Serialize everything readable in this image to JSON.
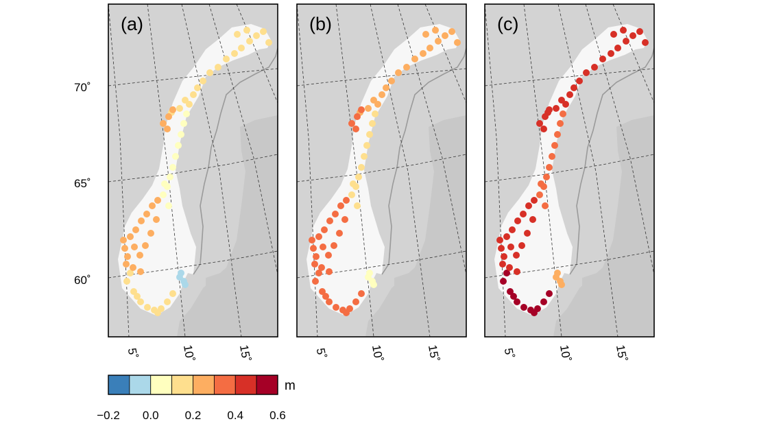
{
  "panels": [
    {
      "id": "a",
      "label": "(a)"
    },
    {
      "id": "b",
      "label": "(b)"
    },
    {
      "id": "c",
      "label": "(c)"
    }
  ],
  "lat_ticks": [
    {
      "value": 70,
      "label": "70˚"
    },
    {
      "value": 65,
      "label": "65˚"
    },
    {
      "value": 60,
      "label": "60˚"
    }
  ],
  "lon_ticks": [
    {
      "value": 5,
      "label": "5˚"
    },
    {
      "value": 10,
      "label": "10˚"
    },
    {
      "value": 15,
      "label": "15˚"
    }
  ],
  "colorbar": {
    "unit": "m",
    "tick_labels": [
      "−0.2",
      "0.0",
      "0.2",
      "0.4",
      "0.6"
    ],
    "range": [
      -0.2,
      0.6
    ],
    "bins": [
      {
        "from": -0.2,
        "to": -0.1,
        "color": "#3a7fb9"
      },
      {
        "from": -0.1,
        "to": 0.0,
        "color": "#abd8e9"
      },
      {
        "from": 0.0,
        "to": 0.1,
        "color": "#ffffbf"
      },
      {
        "from": 0.1,
        "to": 0.2,
        "color": "#fedf8e"
      },
      {
        "from": 0.2,
        "to": 0.3,
        "color": "#fdae61"
      },
      {
        "from": 0.3,
        "to": 0.4,
        "color": "#f46d43"
      },
      {
        "from": 0.4,
        "to": 0.5,
        "color": "#d73027"
      },
      {
        "from": 0.5,
        "to": 0.6,
        "color": "#a50026"
      }
    ]
  },
  "colors": {
    "sea": "#d3d3d3",
    "land": "#f7f7f7",
    "neighbor_land": "#c8c8c8",
    "border": "#9a9a9a",
    "graticule": "#333333"
  },
  "station_values_by_panel": {
    "a": {
      "south": 0.16,
      "west": 0.22,
      "mid": 0.07,
      "north": 0.12,
      "finnmark": 0.15,
      "oslofjord": -0.05,
      "lofoten": 0.24
    },
    "b": {
      "south": 0.34,
      "west": 0.3,
      "mid": 0.14,
      "north": 0.2,
      "finnmark": 0.24,
      "oslofjord": 0.05,
      "lofoten": 0.32
    },
    "c": {
      "south": 0.52,
      "west": 0.47,
      "mid": 0.3,
      "north": 0.43,
      "finnmark": 0.45,
      "oslofjord": 0.22,
      "lofoten": 0.46
    }
  }
}
